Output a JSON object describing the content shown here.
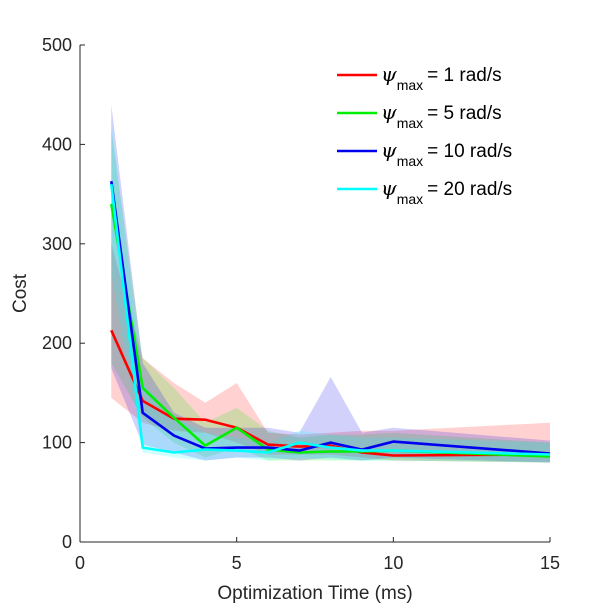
{
  "chart_data": {
    "type": "line",
    "xlabel": "Optimization Time (ms)",
    "ylabel": "Cost",
    "xlim": [
      0,
      15
    ],
    "ylim": [
      0,
      500
    ],
    "xticks": [
      0,
      5,
      10,
      15
    ],
    "yticks": [
      0,
      100,
      200,
      300,
      400,
      500
    ],
    "grid": false,
    "legend_position": "top-right",
    "x": [
      1,
      2,
      3,
      4,
      5,
      6,
      7,
      8,
      9,
      10,
      15
    ],
    "series": [
      {
        "name": "ψmax = 1 rad/s",
        "name_symbol": "ψ",
        "name_subscript": "max",
        "name_suffix": "= 1 rad/s",
        "color": "#ff0000",
        "values": [
          213,
          142,
          124,
          123,
          115,
          98,
          96,
          97,
          90,
          87,
          88
        ],
        "upper": [
          300,
          185,
          160,
          140,
          160,
          110,
          108,
          110,
          112,
          112,
          120
        ],
        "lower": [
          145,
          120,
          112,
          110,
          100,
          88,
          88,
          88,
          85,
          82,
          80
        ]
      },
      {
        "name": "ψmax = 5 rad/s",
        "name_symbol": "ψ",
        "name_subscript": "max",
        "name_suffix": "= 5 rad/s",
        "color": "#00ee00",
        "values": [
          340,
          155,
          125,
          97,
          115,
          93,
          90,
          91,
          91,
          92,
          86
        ],
        "upper": [
          415,
          185,
          155,
          120,
          135,
          112,
          105,
          108,
          108,
          110,
          100
        ],
        "lower": [
          180,
          125,
          100,
          85,
          95,
          82,
          82,
          82,
          82,
          82,
          80
        ]
      },
      {
        "name": "ψmax = 10 rad/s",
        "name_symbol": "ψ",
        "name_subscript": "max",
        "name_suffix": "= 10 rad/s",
        "color": "#0000ee",
        "values": [
          363,
          130,
          107,
          94,
          95,
          95,
          92,
          100,
          93,
          101,
          89
        ],
        "upper": [
          440,
          180,
          130,
          115,
          115,
          115,
          110,
          166,
          110,
          115,
          102
        ],
        "lower": [
          175,
          98,
          90,
          82,
          85,
          85,
          82,
          85,
          82,
          85,
          80
        ]
      },
      {
        "name": "ψmax = 20 rad/s",
        "name_symbol": "ψ",
        "name_subscript": "max",
        "name_suffix": "= 20 rad/s",
        "color": "#00ffff",
        "values": [
          360,
          95,
          90,
          93,
          92,
          90,
          100,
          95,
          92,
          92,
          88
        ],
        "upper": [
          425,
          160,
          125,
          110,
          105,
          100,
          112,
          108,
          105,
          105,
          100
        ],
        "lower": [
          270,
          90,
          85,
          82,
          85,
          82,
          85,
          83,
          82,
          82,
          80
        ]
      }
    ]
  }
}
